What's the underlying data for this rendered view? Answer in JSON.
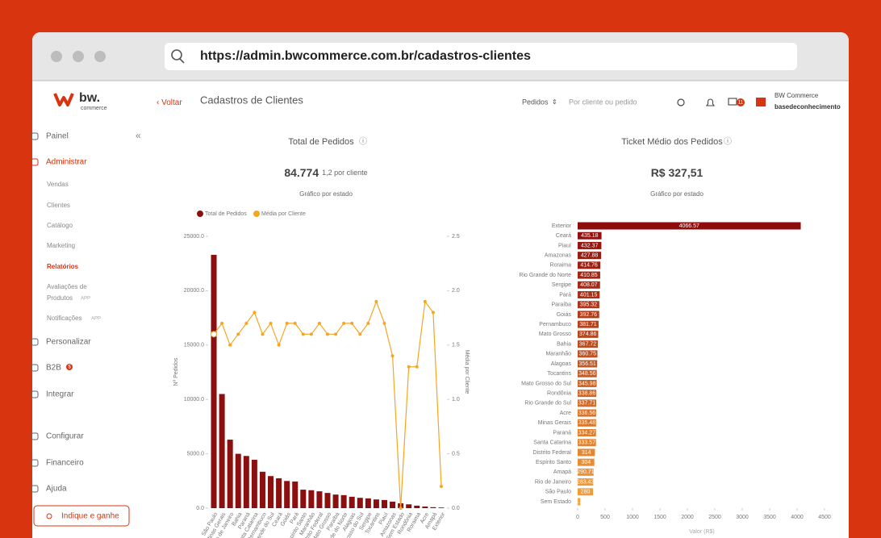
{
  "browser": {
    "url": "https://admin.bwcommerce.com.br/cadastros-clientes"
  },
  "header": {
    "logo": "bw.",
    "logo_sub": "commerce",
    "back": "Voltar",
    "title": "Cadastros de Clientes",
    "filter": "Pedidos",
    "search_placeholder": "Por cliente ou pedido",
    "badge": "11",
    "store": "BW Commerce",
    "user": "basedeconhecimento"
  },
  "sidebar": {
    "items": [
      "Painel",
      "Administrar",
      "Vendas",
      "Clientes",
      "Catálogo",
      "Marketing",
      "Relatórios",
      "Avaliações de",
      "Produtos",
      "Notificações",
      "Personalizar",
      "B2B",
      "Integrar",
      "Configurar",
      "Financeiro",
      "Ajuda"
    ],
    "app_tags": [
      "APP",
      "APP"
    ],
    "b2b_badge": "$",
    "cta": "Indique e ganhe"
  },
  "chart_data": [
    {
      "type": "bar_line",
      "title": "Total de Pedidos",
      "headline": "84.774",
      "headline_note": "1,2 por cliente",
      "subtitle": "Gráfico por estado",
      "ylabel": "Nº Pedidos",
      "y2label": "Média por Cliente",
      "categories": [
        "São Paulo",
        "Minas Gerais",
        "Rio de Janeiro",
        "Bahia",
        "Paraná",
        "Santa Catarina",
        "Pernambuco",
        "Rio Grande do Sul",
        "Ceará",
        "Goiás",
        "Pará",
        "Espírito Santo",
        "Maranhão",
        "Distrito Federal",
        "Mato Grosso",
        "Paraíba",
        "Rio Grande do Norte",
        "Alagoas",
        "Mato Grosso do Sul",
        "Sergipe",
        "Tocantins",
        "Piauí",
        "Amazonas",
        "Sem Estado",
        "Rondônia",
        "Roraima",
        "Acre",
        "Amapá",
        "Exterior"
      ],
      "series": [
        {
          "name": "Total de Pedidos",
          "color": "#8b0f0f",
          "values": [
            23300,
            10500,
            6300,
            5000,
            4800,
            4450,
            3350,
            2950,
            2750,
            2500,
            2450,
            1700,
            1650,
            1550,
            1400,
            1250,
            1200,
            1050,
            950,
            900,
            800,
            750,
            600,
            450,
            350,
            230,
            150,
            90,
            60
          ]
        },
        {
          "name": "Média por Cliente",
          "color": "#f5a623",
          "axis": "y2",
          "values": [
            1.6,
            1.7,
            1.5,
            1.6,
            1.7,
            1.8,
            1.6,
            1.7,
            1.5,
            1.7,
            1.7,
            1.6,
            1.6,
            1.7,
            1.6,
            1.6,
            1.7,
            1.7,
            1.6,
            1.7,
            1.9,
            1.7,
            1.4,
            0.0,
            1.3,
            1.3,
            1.9,
            1.8,
            0.2
          ]
        }
      ],
      "ylim": [
        0,
        25000
      ],
      "yticks": [
        {
          "value": 0,
          "label": "0.0"
        },
        {
          "value": 5000,
          "label": "5000.0"
        },
        {
          "value": 10000,
          "label": "10000.0"
        },
        {
          "value": 15000,
          "label": "15000.0"
        },
        {
          "value": 20000,
          "label": "20000.0"
        },
        {
          "value": 25000,
          "label": "25000.0"
        }
      ],
      "y2lim": [
        0,
        2.5
      ],
      "y2ticks": [
        {
          "value": 0,
          "label": "0.0"
        },
        0.5,
        {
          "value": 1,
          "label": "1.0"
        },
        1.5,
        {
          "value": 2,
          "label": "2.0"
        },
        2.5
      ],
      "legend": "top-left"
    },
    {
      "type": "hbar",
      "title": "Ticket Médio dos Pedidos",
      "headline": "R$ 327,51",
      "subtitle": "Gráfico por estado",
      "xlabel": "Valor (R$)",
      "categories": [
        "Exterior",
        "Ceará",
        "Piauí",
        "Amazonas",
        "Roraima",
        "Rio Grande do Norte",
        "Sergipe",
        "Pará",
        "Paraíba",
        "Goiás",
        "Pernambuco",
        "Mato Grosso",
        "Bahia",
        "Maranhão",
        "Alagoas",
        "Tocantins",
        "Mato Grosso do Sul",
        "Rondônia",
        "Rio Grande do Sul",
        "Acre",
        "Minas Gerais",
        "Paraná",
        "Santa Catarina",
        "Distrito Federal",
        "Espírito Santo",
        "Amapá",
        "Rio de Janeiro",
        "São Paulo",
        "Sem Estado"
      ],
      "values": [
        4066.57,
        435.18,
        432.37,
        427.88,
        414.76,
        410.85,
        408.07,
        401.15,
        395.32,
        392.76,
        381.71,
        374.86,
        367.72,
        360.75,
        356.51,
        348.56,
        345.98,
        338.86,
        337.71,
        336.56,
        335.48,
        334.27,
        333.57,
        314,
        304,
        290.71,
        283.43,
        280,
        48.83
      ],
      "color_range": [
        "#8e0c0c",
        "#f6a23c"
      ],
      "xlim": [
        0,
        4500
      ],
      "xticks": [
        0,
        500,
        1000,
        1500,
        2000,
        2500,
        3000,
        3500,
        4000,
        4500
      ]
    }
  ]
}
